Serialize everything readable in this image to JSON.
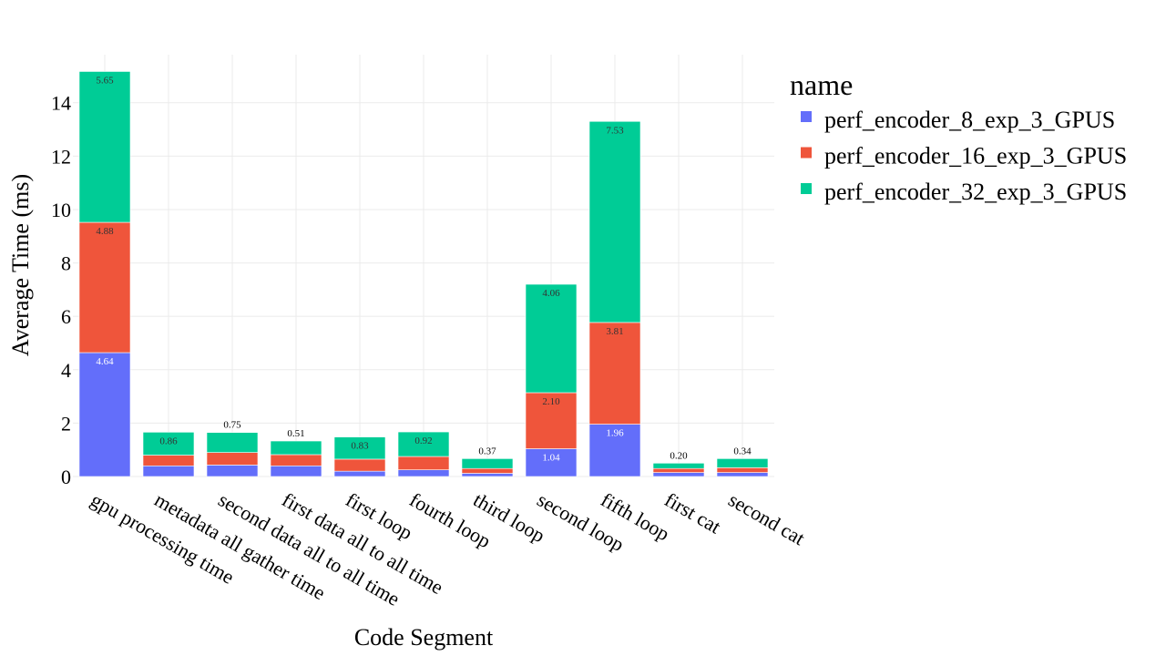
{
  "chart_data": {
    "type": "bar",
    "barmode": "stack",
    "xlabel": "Code Segment",
    "ylabel": "Average Time (ms)",
    "ylim": [
      0,
      15.8
    ],
    "yticks": [
      0,
      2,
      4,
      6,
      8,
      10,
      12,
      14
    ],
    "grid": true,
    "legend_title": "name",
    "legend_position": "top-right",
    "categories": [
      "gpu processing time",
      "metadata all gather time",
      "second data all to all time",
      "first data all to all time",
      "first loop",
      "fourth loop",
      "third loop",
      "second loop",
      "fifth loop",
      "first cat",
      "second cat"
    ],
    "series": [
      {
        "name": "perf_encoder_8_exp_3_GPUS",
        "color": "#636efa",
        "values": [
          4.64,
          0.4,
          0.43,
          0.4,
          0.2,
          0.25,
          0.12,
          1.04,
          1.96,
          0.15,
          0.15
        ],
        "labels": [
          "4.64",
          "",
          "",
          "",
          "",
          "",
          "",
          "1.04",
          "1.96",
          "",
          ""
        ]
      },
      {
        "name": "perf_encoder_16_exp_3_GPUS",
        "color": "#ef553b",
        "values": [
          4.88,
          0.4,
          0.47,
          0.42,
          0.45,
          0.5,
          0.18,
          2.1,
          3.81,
          0.15,
          0.18
        ],
        "labels": [
          "4.88",
          "",
          "",
          "",
          "",
          "",
          "",
          "2.10",
          "3.81",
          "",
          ""
        ]
      },
      {
        "name": "perf_encoder_32_exp_3_GPUS",
        "color": "#00cc96",
        "values": [
          5.65,
          0.86,
          0.75,
          0.51,
          0.83,
          0.92,
          0.37,
          4.06,
          7.53,
          0.2,
          0.34
        ],
        "labels": [
          "5.65",
          "0.86",
          "0.75",
          "0.51",
          "0.83",
          "0.92",
          "0.37",
          "4.06",
          "7.53",
          "0.20",
          "0.34"
        ]
      }
    ]
  }
}
